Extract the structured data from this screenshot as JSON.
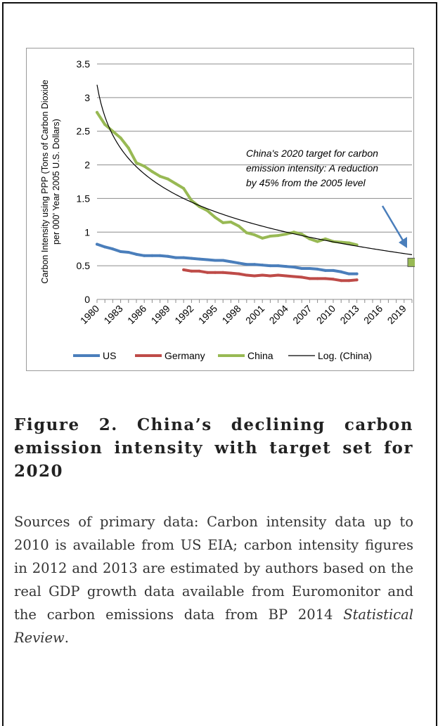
{
  "chart_data": {
    "type": "line",
    "ylabel_line1": "Carbon Intensity using PPP (Tons of Carbon Dioxide",
    "ylabel_line2": "per 000' Year 2005 U.S. Dollars)",
    "ylim": [
      0,
      3.5
    ],
    "yticks": [
      "0",
      "0.5",
      "1",
      "1.5",
      "2",
      "2.5",
      "3",
      "3.5"
    ],
    "xticks": [
      "1980",
      "1983",
      "1986",
      "1989",
      "1992",
      "1995",
      "1998",
      "2001",
      "2004",
      "2007",
      "2010",
      "2013",
      "2016",
      "2019"
    ],
    "xlim": [
      1980,
      2020
    ],
    "grid": "horizontal",
    "legend_position": "bottom",
    "series": [
      {
        "name": "US",
        "color": "#4a7ebb",
        "x": [
          1980,
          1981,
          1982,
          1983,
          1984,
          1985,
          1986,
          1987,
          1988,
          1989,
          1990,
          1991,
          1992,
          1993,
          1994,
          1995,
          1996,
          1997,
          1998,
          1999,
          2000,
          2001,
          2002,
          2003,
          2004,
          2005,
          2006,
          2007,
          2008,
          2009,
          2010,
          2011,
          2012,
          2013
        ],
        "y": [
          0.82,
          0.78,
          0.75,
          0.71,
          0.7,
          0.67,
          0.65,
          0.65,
          0.65,
          0.64,
          0.62,
          0.62,
          0.61,
          0.6,
          0.59,
          0.58,
          0.58,
          0.56,
          0.54,
          0.52,
          0.52,
          0.51,
          0.5,
          0.5,
          0.49,
          0.48,
          0.46,
          0.46,
          0.45,
          0.43,
          0.43,
          0.41,
          0.38,
          0.38
        ]
      },
      {
        "name": "Germany",
        "color": "#be4b48",
        "x": [
          1991,
          1992,
          1993,
          1994,
          1995,
          1996,
          1997,
          1998,
          1999,
          2000,
          2001,
          2002,
          2003,
          2004,
          2005,
          2006,
          2007,
          2008,
          2009,
          2010,
          2011,
          2012,
          2013
        ],
        "y": [
          0.44,
          0.42,
          0.42,
          0.4,
          0.4,
          0.4,
          0.39,
          0.38,
          0.36,
          0.35,
          0.36,
          0.35,
          0.36,
          0.35,
          0.34,
          0.33,
          0.31,
          0.31,
          0.31,
          0.3,
          0.28,
          0.28,
          0.29
        ]
      },
      {
        "name": "China",
        "color": "#98b954",
        "x": [
          1980,
          1981,
          1982,
          1983,
          1984,
          1985,
          1986,
          1987,
          1988,
          1989,
          1990,
          1991,
          1992,
          1993,
          1994,
          1995,
          1996,
          1997,
          1998,
          1999,
          2000,
          2001,
          2002,
          2003,
          2004,
          2005,
          2006,
          2007,
          2008,
          2009,
          2010,
          2011,
          2012,
          2013
        ],
        "y": [
          2.78,
          2.6,
          2.5,
          2.4,
          2.25,
          2.03,
          1.98,
          1.9,
          1.83,
          1.79,
          1.72,
          1.65,
          1.47,
          1.38,
          1.32,
          1.22,
          1.14,
          1.15,
          1.09,
          0.99,
          0.96,
          0.91,
          0.94,
          0.95,
          0.97,
          1.0,
          0.97,
          0.9,
          0.86,
          0.9,
          0.86,
          0.85,
          0.84,
          0.81
        ]
      },
      {
        "name": "Log. (China)",
        "color": "#000000",
        "trend": {
          "type": "logarithmic",
          "a": 3.19,
          "b": -0.68,
          "from": 1980,
          "to": 2020
        }
      }
    ],
    "target_point": {
      "x": 2020,
      "y": 0.55,
      "color": "#98b954"
    },
    "annotation": {
      "lines": [
        "China's 2020 target for carbon",
        "emission intensity: A reduction",
        "by 45% from the 2005 level"
      ],
      "arrow_color": "#4a7ebb"
    }
  },
  "caption": {
    "title": "Figure 2. China’s declining carbon emission intensity with target set for 2020"
  },
  "sources": {
    "text": "Sources of primary data: Carbon intensity data up to 2010 is available from US EIA; carbon intensity figures in 2012 and 2013 are estimated by authors based on the real GDP growth data available from Euromonitor and the carbon emissions data from BP 2014 ",
    "italic": "Statistical Review",
    "end": "."
  }
}
